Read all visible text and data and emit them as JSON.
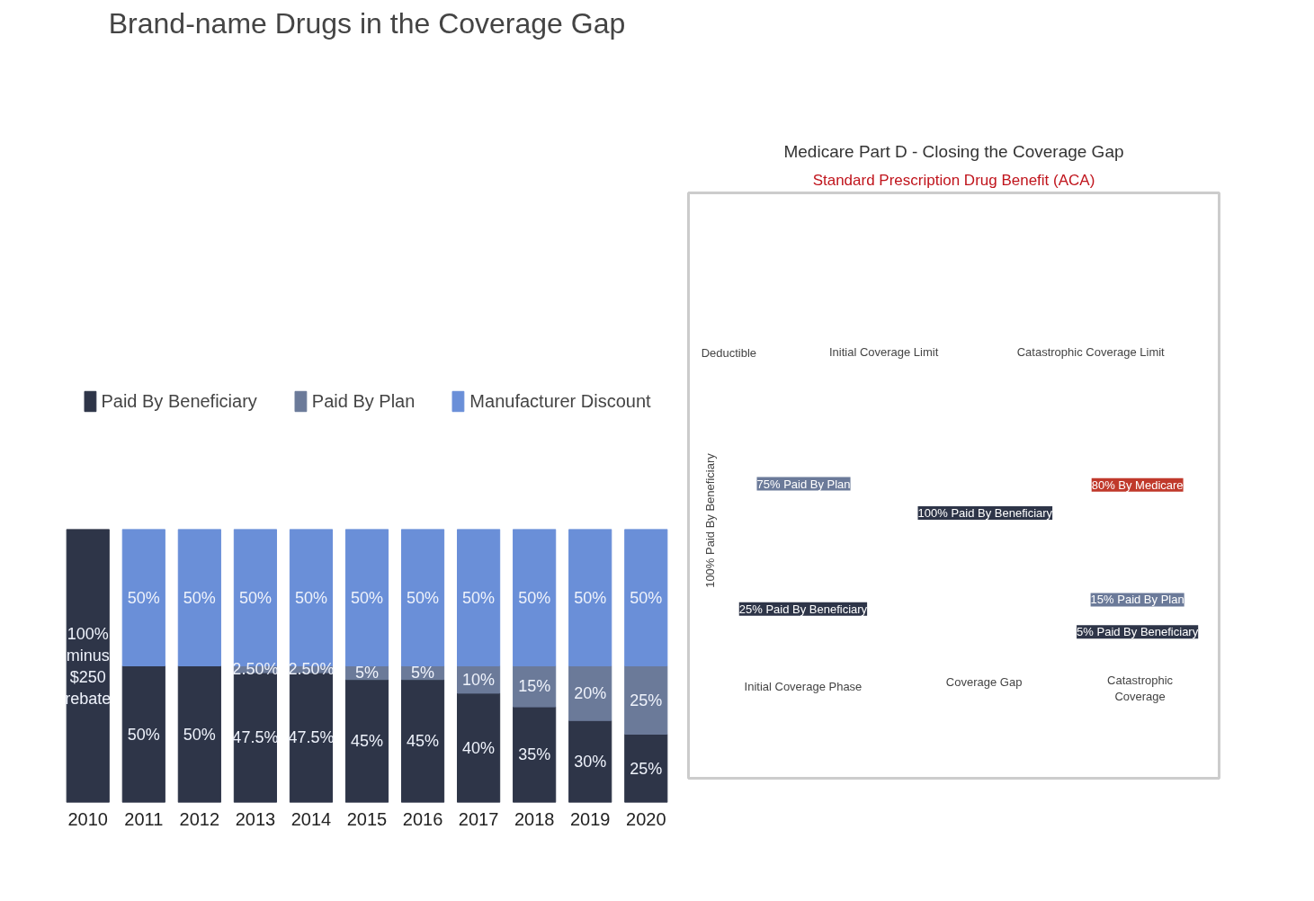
{
  "chart_data": [
    {
      "type": "bar",
      "title": "Brand-name Drugs in the Coverage Gap",
      "stacked": true,
      "legend": "top",
      "grid": false,
      "ylim": [
        0,
        100
      ],
      "tick_labels": "x",
      "categories": [
        "2010",
        "2011",
        "2012",
        "2013",
        "2014",
        "2015",
        "2016",
        "2017",
        "2018",
        "2019",
        "2020"
      ],
      "series": [
        {
          "name": "Paid By Beneficiary",
          "color": "#2e3548",
          "values": [
            100,
            50,
            50,
            47.5,
            47.5,
            45,
            45,
            40,
            35,
            30,
            25
          ],
          "value_labels": [
            "100%\nminus\n$250\nrebate",
            "50%",
            "50%",
            "47.5%",
            "47.5%",
            "45%",
            "45%",
            "40%",
            "35%",
            "30%",
            "25%"
          ]
        },
        {
          "name": "Paid By Plan",
          "color": "#6b7a99",
          "values": [
            null,
            null,
            null,
            2.5,
            2.5,
            5,
            5,
            10,
            15,
            20,
            25
          ],
          "value_labels": [
            null,
            null,
            null,
            "2.50%",
            "2.50%",
            "5%",
            "5%",
            "10%",
            "15%",
            "20%",
            "25%"
          ]
        },
        {
          "name": "Manufacturer Discount",
          "color": "#6a8fd8",
          "values": [
            null,
            50,
            50,
            50,
            50,
            50,
            50,
            50,
            50,
            50,
            50
          ],
          "value_labels": [
            null,
            "50%",
            "50%",
            "50%",
            "50%",
            "50%",
            "50%",
            "50%",
            "50%",
            "50%",
            "50%"
          ]
        }
      ]
    },
    {
      "type": "other",
      "title": "Medicare Part D - Closing the Coverage Gap",
      "subtitle": "Standard Prescription Drug Benefit (ACA)",
      "annotations": [
        "Deductible",
        "Initial Coverage Limit",
        "Catastrophic Coverage Limit",
        "100% Paid By Beneficiary",
        "75% Paid By Plan",
        "25% Paid By Beneficiary",
        "100% Paid By Beneficiary",
        "80% By Medicare",
        "15% Paid By Plan",
        "5% Paid By Beneficiary",
        "Initial Coverage Phase",
        "Coverage Gap",
        "Catastrophic\nCoverage"
      ]
    }
  ]
}
